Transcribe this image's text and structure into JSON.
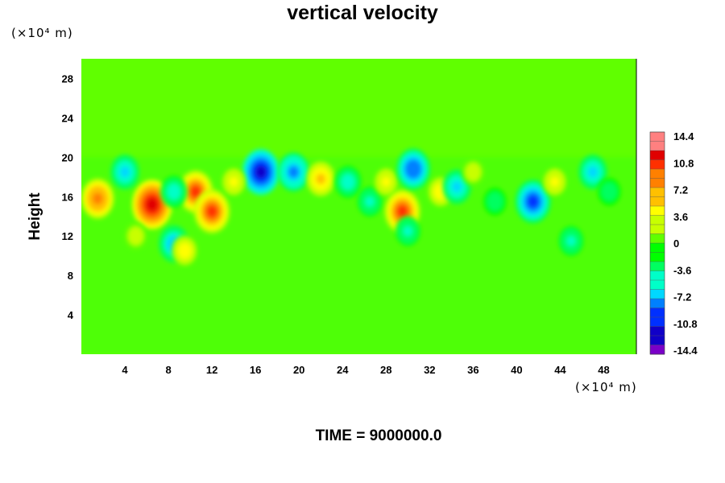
{
  "chart_data": {
    "type": "heatmap",
    "title": "vertical velocity",
    "ylabel": "Height",
    "y_unit": "(×10⁴ m)",
    "x_unit": "(×10⁴ m)",
    "footer": "TIME = 9000000.0",
    "x_ticks": [
      "4",
      "8",
      "12",
      "16",
      "20",
      "24",
      "28",
      "32",
      "36",
      "40",
      "44",
      "48"
    ],
    "y_ticks": [
      "4",
      "8",
      "12",
      "16",
      "20",
      "24",
      "28"
    ],
    "xlim": [
      0,
      51
    ],
    "ylim": [
      0,
      30
    ],
    "colorbar": {
      "ticks": [
        "14.4",
        "10.8",
        "7.2",
        "3.6",
        "0",
        "-3.6",
        "-7.2",
        "-10.8",
        "-14.4"
      ],
      "range": [
        -14.4,
        14.4
      ],
      "levels": 24,
      "colormap": [
        "#7a00c8",
        "#1000c8",
        "#0030ff",
        "#0080ff",
        "#00d8ff",
        "#00ffc8",
        "#00ff60",
        "#00ff00",
        "#60ff00",
        "#c8ff00",
        "#ffff00",
        "#ffc000",
        "#ff8000",
        "#ff3000",
        "#e00000",
        "#ff8080"
      ]
    },
    "background_value": 0,
    "features": [
      {
        "x": 1.5,
        "y": 15.8,
        "v": 8.5
      },
      {
        "x": 6.5,
        "y": 15.2,
        "v": 12.5
      },
      {
        "x": 10.5,
        "y": 16.5,
        "v": 9.5
      },
      {
        "x": 12,
        "y": 14.5,
        "v": 10
      },
      {
        "x": 8.5,
        "y": 16.5,
        "v": -5
      },
      {
        "x": 8.5,
        "y": 11.2,
        "v": -7
      },
      {
        "x": 4,
        "y": 18.5,
        "v": -6
      },
      {
        "x": 9.5,
        "y": 10.5,
        "v": 5
      },
      {
        "x": 16.5,
        "y": 18.5,
        "v": -11
      },
      {
        "x": 19.5,
        "y": 18.5,
        "v": -8
      },
      {
        "x": 22,
        "y": 17.8,
        "v": 6
      },
      {
        "x": 24.5,
        "y": 17.5,
        "v": -5
      },
      {
        "x": 26.5,
        "y": 15.5,
        "v": -4
      },
      {
        "x": 28,
        "y": 17.5,
        "v": 4
      },
      {
        "x": 29.5,
        "y": 14.5,
        "v": 10
      },
      {
        "x": 30,
        "y": 12.5,
        "v": -4
      },
      {
        "x": 30.5,
        "y": 18.8,
        "v": -9
      },
      {
        "x": 33,
        "y": 16.5,
        "v": 5
      },
      {
        "x": 34.5,
        "y": 17,
        "v": -6
      },
      {
        "x": 38,
        "y": 15.5,
        "v": -3
      },
      {
        "x": 41.5,
        "y": 15.5,
        "v": -10
      },
      {
        "x": 43.5,
        "y": 17.5,
        "v": 4
      },
      {
        "x": 45,
        "y": 11.5,
        "v": -4
      },
      {
        "x": 47,
        "y": 18.5,
        "v": -6
      },
      {
        "x": 48.5,
        "y": 16.5,
        "v": -3
      },
      {
        "x": 14,
        "y": 17.5,
        "v": 4
      },
      {
        "x": 5,
        "y": 12,
        "v": 3
      },
      {
        "x": 36,
        "y": 18.5,
        "v": 3
      }
    ]
  }
}
